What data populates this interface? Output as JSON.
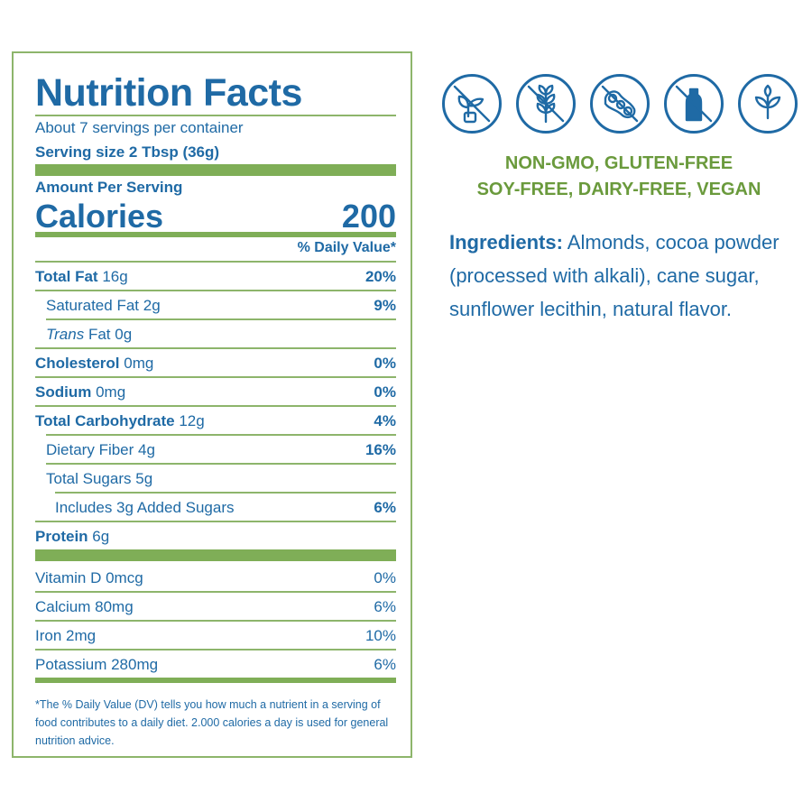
{
  "label": {
    "title": "Nutrition Facts",
    "servings": "About 7 servings per container",
    "serving_size": "Serving size 2 Tbsp (36g)",
    "amount_per_serving": "Amount Per Serving",
    "calories_label": "Calories",
    "calories_value": "200",
    "dv_header": "% Daily Value*",
    "nutrients": [
      {
        "name": "Total Fat",
        "amount": "16g",
        "dv": "20%"
      },
      {
        "name": "Saturated Fat",
        "amount": "2g",
        "dv": "9%"
      },
      {
        "name": "Trans",
        "name_rest": "Fat",
        "amount": "0g",
        "dv": ""
      },
      {
        "name": "Cholesterol",
        "amount": "0mg",
        "dv": "0%"
      },
      {
        "name": "Sodium",
        "amount": "0mg",
        "dv": "0%"
      },
      {
        "name": "Total Carbohydrate",
        "amount": "12g",
        "dv": "4%"
      },
      {
        "name": "Dietary Fiber",
        "amount": "4g",
        "dv": "16%"
      },
      {
        "name": "Total Sugars",
        "amount": "5g",
        "dv": ""
      },
      {
        "name": "Includes 3g Added Sugars",
        "amount": "",
        "dv": "6%"
      },
      {
        "name": "Protein",
        "amount": "6g",
        "dv": ""
      }
    ],
    "vitamins": [
      {
        "text": "Vitamin D 0mcg",
        "dv": "0%"
      },
      {
        "text": "Calcium 80mg",
        "dv": "6%"
      },
      {
        "text": "Iron 2mg",
        "dv": "10%"
      },
      {
        "text": "Potassium 280mg",
        "dv": "6%"
      }
    ],
    "footnote": "*The % Daily Value (DV) tells you how much a nutrient in a serving of food contributes to a daily diet. 2.000 calories a day is used for general nutrition advice."
  },
  "badges": {
    "icons": [
      "no-gmo-icon",
      "no-gluten-icon",
      "no-soy-icon",
      "no-dairy-icon",
      "vegan-leaf-icon"
    ],
    "line1": "NON-GMO, GLUTEN-FREE",
    "line2": "SOY-FREE, DAIRY-FREE, VEGAN"
  },
  "ingredients": {
    "label": "Ingredients:",
    "text": " Almonds, cocoa powder (processed with alkali), cane sugar, sunflower lecithin, natural flavor."
  },
  "colors": {
    "blue": "#1f6aa5",
    "green_text": "#6a9a3c",
    "green_rule": "#7fae57",
    "border": "#8db56b"
  }
}
